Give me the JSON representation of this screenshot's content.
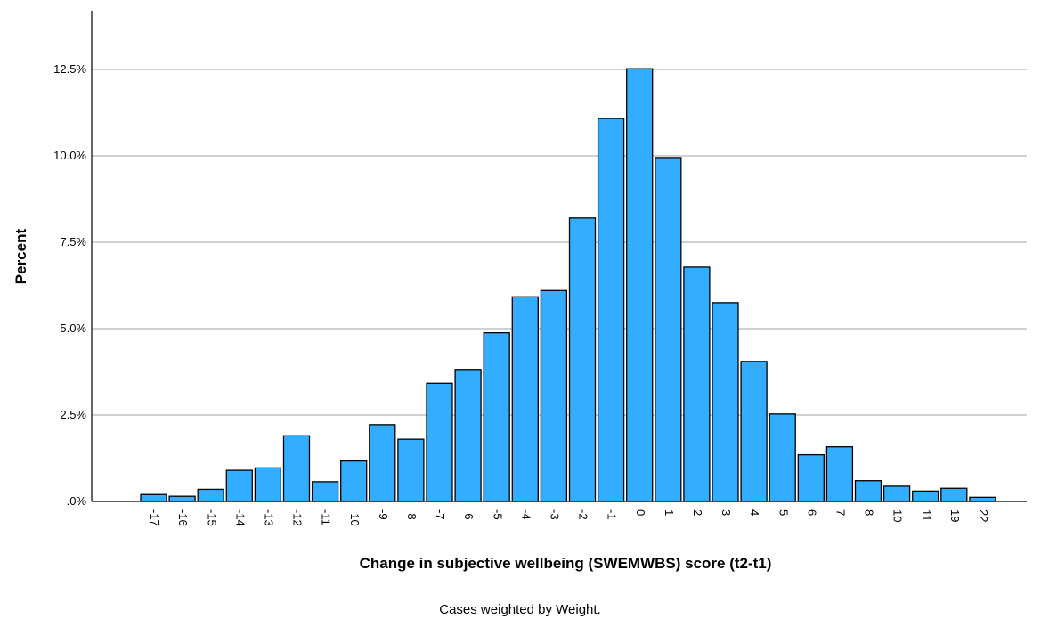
{
  "chart_data": {
    "type": "bar",
    "title": "",
    "xlabel": "Change in subjective wellbeing (SWEMWBS) score (t2-t1)",
    "ylabel": "Percent",
    "footnote": "Cases weighted by Weight.",
    "categories": [
      "-17",
      "-16",
      "-15",
      "-14",
      "-13",
      "-12",
      "-11",
      "-10",
      "-9",
      "-8",
      "-7",
      "-6",
      "-5",
      "-4",
      "-3",
      "-2",
      "-1",
      "0",
      "1",
      "2",
      "3",
      "4",
      "5",
      "6",
      "7",
      "8",
      "10",
      "11",
      "19",
      "22"
    ],
    "values": [
      0.2,
      0.15,
      0.35,
      0.9,
      0.97,
      1.9,
      0.57,
      1.17,
      2.22,
      1.8,
      3.42,
      3.82,
      4.88,
      5.92,
      6.1,
      8.2,
      11.08,
      12.52,
      9.95,
      6.78,
      5.75,
      4.05,
      2.53,
      1.35,
      1.58,
      0.6,
      0.44,
      0.3,
      0.38,
      0.12
    ],
    "ylim": [
      0,
      14.2
    ],
    "yticks": [
      0,
      2.5,
      5.0,
      7.5,
      10.0,
      12.5
    ],
    "ytick_labels": [
      ".0%",
      "2.5%",
      "5.0%",
      "7.5%",
      "10.0%",
      "12.5%"
    ],
    "grid": true,
    "colors": {
      "bar_fill": "#33adff",
      "bar_stroke": "#000000",
      "grid": "#a0a0a0",
      "axis": "#000000"
    }
  }
}
